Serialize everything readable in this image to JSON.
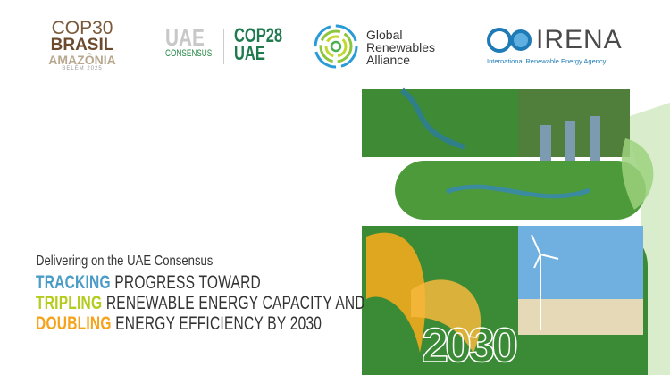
{
  "logos": {
    "cop30": {
      "line1": "COP30",
      "line2": "BRASIL",
      "line3": "AMAZÔNIA",
      "line4": "BELÉM 2025"
    },
    "uae_consensus": {
      "line1": "UAE",
      "line2": "CONSENSUS"
    },
    "cop28": {
      "line1": "COP28",
      "line2": "UAE"
    },
    "gra": {
      "line1": "Global",
      "line2": "Renewables",
      "line3": "Alliance"
    },
    "irena": {
      "name": "IRENA",
      "full": "International Renewable Energy Agency"
    }
  },
  "cover": {
    "subtitle": "Delivering on the UAE Consensus",
    "lines": [
      {
        "highlight": "TRACKING",
        "rest": " PROGRESS TOWARD",
        "color": "#4a9cc7"
      },
      {
        "highlight": "TRIPLING",
        "rest": " RENEWABLE ENERGY CAPACITY AND",
        "color": "#b5cc1f"
      },
      {
        "highlight": "DOUBLING",
        "rest": " ENERGY EFFICIENCY BY 2030",
        "color": "#f5a31a"
      }
    ],
    "year": "2030"
  }
}
